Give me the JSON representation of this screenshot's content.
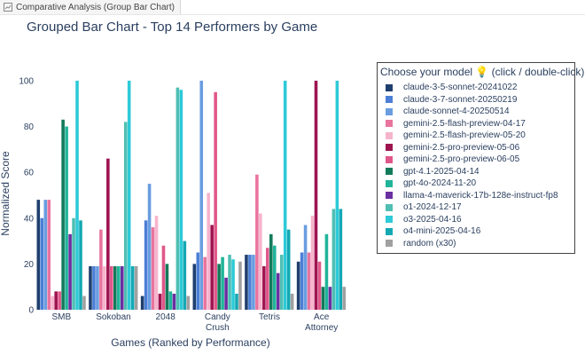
{
  "tab": {
    "title": "Comparative Analysis (Group Bar Chart)",
    "icon": "chart-icon"
  },
  "legend": {
    "title": "Choose your model 💡 (click / double-click)"
  },
  "chart_data": {
    "type": "bar",
    "title": "Grouped Bar Chart - Top 14 Performers by Game",
    "xlabel": "Games (Ranked by Performance)",
    "ylabel": "Normalized Score",
    "ylim": [
      0,
      105
    ],
    "yticks": [
      0,
      20,
      40,
      60,
      80,
      100
    ],
    "grid": false,
    "legend_position": "right",
    "categories": [
      "SMB",
      "Sokoban",
      "2048",
      "Candy Crush",
      "Tetris",
      "Ace Attorney"
    ],
    "category_lines": [
      [
        "SMB"
      ],
      [
        "Sokoban"
      ],
      [
        "2048"
      ],
      [
        "Candy",
        "Crush"
      ],
      [
        "Tetris"
      ],
      [
        "Ace",
        "Attorney"
      ]
    ],
    "series": [
      {
        "name": "claude-3-5-sonnet-20241022",
        "color": "#1f3f6e",
        "values": [
          48,
          19,
          6,
          20,
          24,
          21
        ]
      },
      {
        "name": "claude-3-7-sonnet-20250219",
        "color": "#4c7fd6",
        "values": [
          40,
          19,
          39,
          25,
          24,
          25
        ]
      },
      {
        "name": "claude-sonnet-4-20250514",
        "color": "#6a9de0",
        "values": [
          48,
          19,
          55,
          100,
          24,
          37
        ]
      },
      {
        "name": "gemini-2.5-flash-preview-04-17",
        "color": "#e8749e",
        "values": [
          48,
          35,
          36,
          23,
          59,
          25
        ]
      },
      {
        "name": "gemini-2.5-flash-preview-05-20",
        "color": "#f6b4cc",
        "values": [
          6,
          19,
          41,
          51,
          42,
          41
        ]
      },
      {
        "name": "gemini-2.5-pro-preview-05-06",
        "color": "#9e1450",
        "values": [
          8,
          66,
          7,
          37,
          19,
          100
        ]
      },
      {
        "name": "gemini-2.5-pro-preview-06-05",
        "color": "#e0578a",
        "values": [
          8,
          19,
          28,
          95,
          27,
          21
        ]
      },
      {
        "name": "gpt-4.1-2025-04-14",
        "color": "#137a5a",
        "values": [
          83,
          19,
          20,
          20,
          33,
          10
        ]
      },
      {
        "name": "gpt-4o-2024-11-20",
        "color": "#20b49a",
        "values": [
          80,
          19,
          8,
          23,
          28,
          33
        ]
      },
      {
        "name": "llama-4-maverick-17b-128e-instruct-fp8",
        "color": "#6a2fa0",
        "values": [
          33,
          19,
          7,
          14,
          16,
          10
        ]
      },
      {
        "name": "o1-2024-12-17",
        "color": "#4fbfb3",
        "values": [
          40,
          82,
          97,
          24,
          24,
          44
        ]
      },
      {
        "name": "o3-2025-04-16",
        "color": "#2dcad8",
        "values": [
          100,
          100,
          96,
          22,
          100,
          100
        ]
      },
      {
        "name": "o4-mini-2025-04-16",
        "color": "#14a8b4",
        "values": [
          39,
          19,
          30,
          7,
          35,
          44
        ]
      },
      {
        "name": "random (x30)",
        "color": "#a0a0a0",
        "values": [
          6,
          19,
          6,
          21,
          7,
          10
        ]
      }
    ]
  }
}
